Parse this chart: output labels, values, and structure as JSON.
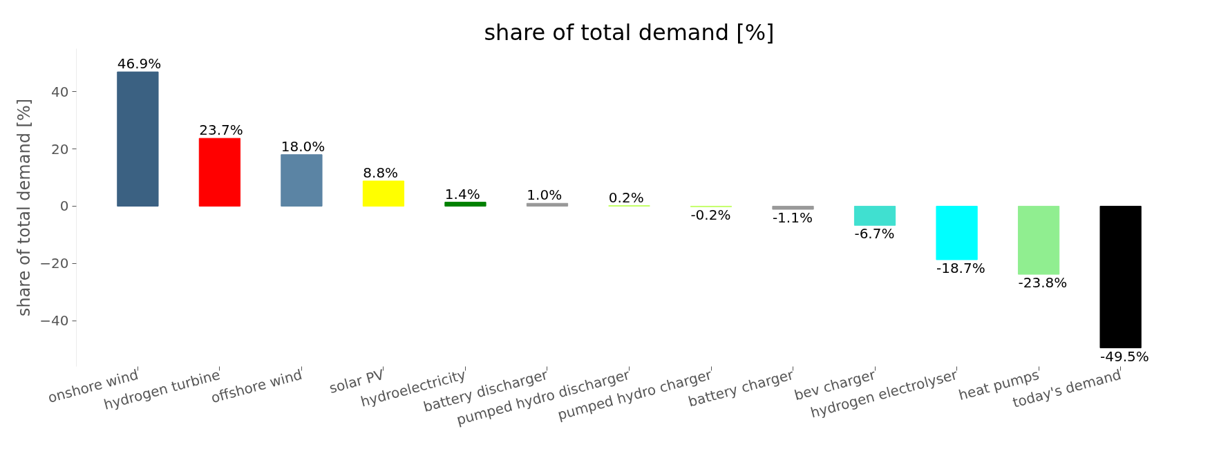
{
  "chart_data": {
    "type": "bar",
    "title": "share of total demand [%]",
    "ylabel": "share of total demand [%]",
    "categories": [
      "onshore wind",
      "hydrogen turbine",
      "offshore wind",
      "solar PV",
      "hydroelectricity",
      "battery discharger",
      "pumped hydro discharger",
      "pumped hydro charger",
      "battery charger",
      "bev charger",
      "hydrogen electrolyser",
      "heat pumps",
      "today's demand"
    ],
    "values": [
      46.9,
      23.7,
      18.0,
      8.8,
      1.4,
      1.0,
      0.2,
      -0.2,
      -1.1,
      -6.7,
      -18.7,
      -23.8,
      -49.5
    ],
    "colors": [
      "#3b6182",
      "#ff0000",
      "#5b84a4",
      "#ffff00",
      "#008000",
      "#999999",
      "#c0ff60",
      "#c0ff60",
      "#999999",
      "#40e0d0",
      "#00ffff",
      "#90ee90",
      "#000000"
    ],
    "value_labels": [
      "46.9%",
      "23.7%",
      "18.0%",
      "8.8%",
      "1.4%",
      "1.0%",
      "0.2%",
      "-0.2%",
      "-1.1%",
      "-6.7%",
      "-18.7%",
      "-23.8%",
      "-49.5%"
    ],
    "ylim": [
      -56,
      55
    ],
    "yticks": [
      -40,
      -20,
      0,
      20,
      40
    ],
    "grid": false
  }
}
